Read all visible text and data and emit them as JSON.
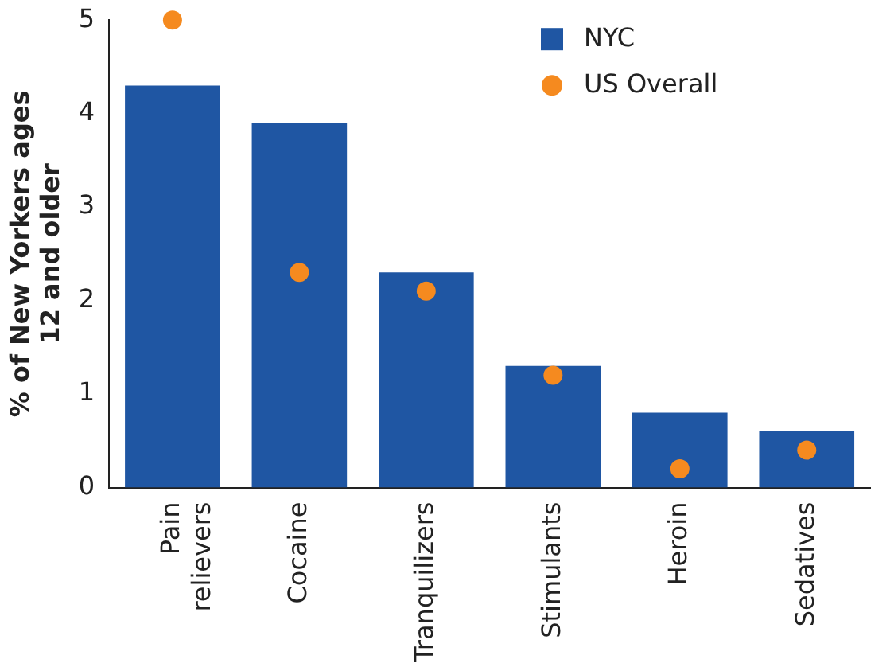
{
  "chart_data": {
    "type": "bar",
    "ylabel": "% of New Yorkers ages 12 and older",
    "categories": [
      "Pain relievers",
      "Cocaine",
      "Tranquilizers",
      "Stimulants",
      "Heroin",
      "Sedatives"
    ],
    "series": [
      {
        "name": "NYC",
        "color": "#1f56a3",
        "values": [
          4.3,
          3.9,
          2.3,
          1.3,
          0.8,
          0.6
        ]
      },
      {
        "name": "US Overall",
        "type": "scatter",
        "color": "#f58a1f",
        "x": [
          "Pain relievers",
          "Cocaine",
          "Tranquilizers",
          "Stimulants",
          "Heroin",
          "Sedatives"
        ],
        "values": [
          5.0,
          2.3,
          2.1,
          1.2,
          0.2,
          0.4
        ]
      }
    ],
    "ylim": [
      0,
      5
    ],
    "yticks": [
      0,
      1,
      2,
      3,
      4,
      5
    ],
    "grid": false,
    "legend": "top right",
    "marker": "circle"
  }
}
